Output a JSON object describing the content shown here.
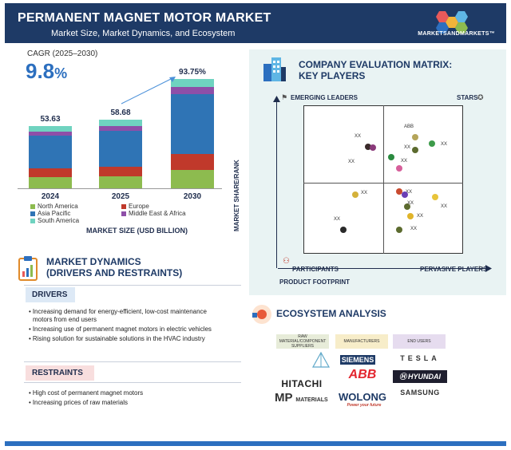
{
  "header": {
    "title": "PERMANENT MAGNET MOTOR MARKET",
    "subtitle": "Market Size, Market Dynamics, and Ecosystem",
    "logo_text": "MARKETSANDMARKETS™"
  },
  "cagr": {
    "label": "CAGR (2025–2030)",
    "value": "9.8",
    "unit": "%"
  },
  "colors": {
    "north_america": "#8dbb4f",
    "europe": "#c0392b",
    "asia_pacific": "#2f74b5",
    "middle_east_africa": "#8e4fa8",
    "south_america": "#6fd3c0",
    "header": "#1e3a66",
    "accent": "#2c6fbf"
  },
  "chart_data": {
    "type": "bar",
    "stacked": true,
    "categories": [
      "2024",
      "2025",
      "2030"
    ],
    "totals": [
      "53.63",
      "58.68",
      "93.75%"
    ],
    "series": [
      {
        "name": "North America",
        "key": "north_america",
        "values": [
          9.3,
          10.2,
          16.0
        ]
      },
      {
        "name": "Europe",
        "key": "europe",
        "values": [
          7.5,
          8.2,
          13.5
        ]
      },
      {
        "name": "Asia Pacific",
        "key": "asia_pacific",
        "values": [
          28.5,
          31.2,
          51.5
        ]
      },
      {
        "name": "Middle East & Africa",
        "key": "middle_east_africa",
        "values": [
          3.4,
          3.8,
          6.0
        ]
      },
      {
        "name": "South America",
        "key": "south_america",
        "values": [
          4.9,
          5.3,
          6.8
        ]
      }
    ],
    "xlabel": "MARKET SIZE (USD BILLION)",
    "ylim": [
      0,
      100
    ]
  },
  "dynamics": {
    "title_line1": "MARKET DYNAMICS",
    "title_line2": "(DRIVERS AND RESTRAINTS)",
    "drivers_label": "DRIVERS",
    "drivers": [
      "Increasing demand for energy-efficient, low-cost maintenance",
      "motors from end users",
      "Increasing use of permanent magnet motors in electric vehicles",
      "Rising solution for sustainable solutions in the HVAC industry"
    ],
    "restraints_label": "RESTRAINTS",
    "restraints": [
      "High cost of permanent magnet motors",
      "Increasing prices of raw materials"
    ]
  },
  "matrix": {
    "title_line1": "COMPANY EVALUATION MATRIX:",
    "title_line2": "KEY PLAYERS",
    "q_emerging": "EMERGING LEADERS",
    "q_stars": "STARS",
    "q_participants": "PARTICIPANTS",
    "q_pervasive": "PERVASIVE PLAYERS",
    "y_axis": "MARKET SHARE/RANK",
    "x_axis": "PRODUCT FOOTPRINT",
    "players": [
      {
        "label": "ABB",
        "color": "#b5a55a"
      },
      {
        "label": "XX",
        "color": "#3d9b4a"
      },
      {
        "label": "XX",
        "color": "#5c6b2f"
      },
      {
        "label": "XX",
        "color": "#2a8a3f"
      },
      {
        "label": "XX",
        "color": "#d65f9a"
      },
      {
        "label": "XX",
        "color": "#3a2a2a"
      },
      {
        "label": "XX",
        "color": "#8a3a7a"
      },
      {
        "label": "XX",
        "color": "#c94a2f"
      },
      {
        "label": "XX",
        "color": "#6a3fb5"
      },
      {
        "label": "XX",
        "color": "#d4b13a"
      },
      {
        "label": "XX",
        "color": "#5c6b2f"
      },
      {
        "label": "XX",
        "color": "#e0b42a"
      },
      {
        "label": "XX",
        "color": "#5c6b2f"
      },
      {
        "label": "XX",
        "color": "#2a2a2a"
      },
      {
        "label": "XX",
        "color": "#e8c43a"
      }
    ]
  },
  "ecosystem": {
    "title": "ECOSYSTEM ANALYSIS",
    "col1": "RAW MATERIAL/COMPONENT SUPPLIERS",
    "col2": "MANUFACTURERS",
    "col3": "END USERS",
    "logos": {
      "siemens": "SIEMENS",
      "tesla": "TESLA",
      "abb": "ABB",
      "hyundai": "HYUNDAI",
      "hitachi": "HITACHI",
      "mp": "MP",
      "mp_sub": "MATERIALS",
      "wolong": "WOLONG",
      "wolong_tag": "Power your future",
      "samsung": "SAMSUNG"
    }
  }
}
